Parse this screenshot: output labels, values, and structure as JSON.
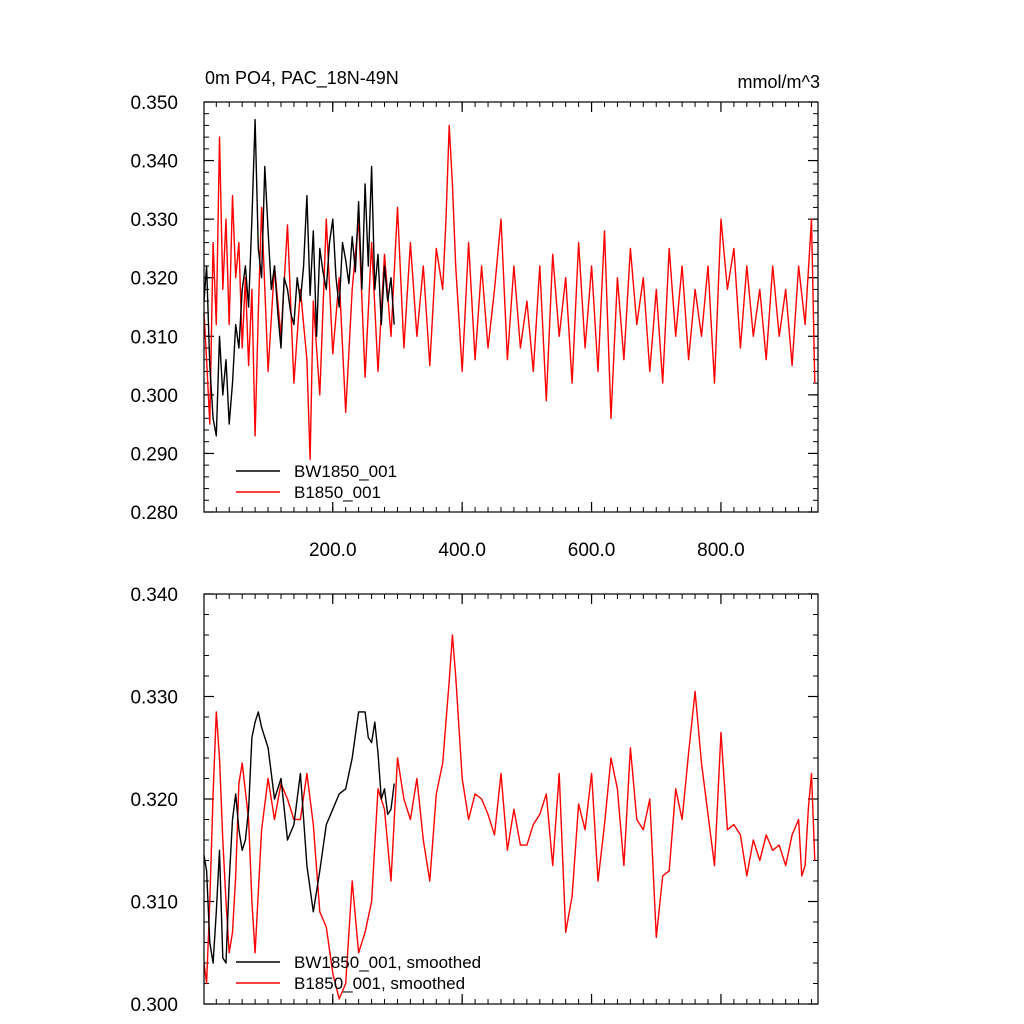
{
  "chart_data": [
    {
      "type": "line",
      "title": "0m PO4, PAC_18N-49N",
      "units": "mmol/m^3",
      "xlim": [
        1,
        950
      ],
      "ylim": [
        0.28,
        0.35
      ],
      "xticks": [
        200,
        400,
        600,
        800
      ],
      "xtick_labels": [
        "200.0",
        "400.0",
        "600.0",
        "800.0"
      ],
      "yticks": [
        0.28,
        0.29,
        0.3,
        0.31,
        0.32,
        0.33,
        0.34,
        0.35
      ],
      "ytick_labels": [
        "0.280",
        "0.290",
        "0.300",
        "0.310",
        "0.320",
        "0.330",
        "0.340",
        "0.350"
      ],
      "legend_position": "bottom-left",
      "series": [
        {
          "name": "BW1850_001",
          "color": "#000000",
          "x": [
            1,
            5,
            10,
            15,
            20,
            25,
            30,
            35,
            40,
            45,
            50,
            55,
            60,
            65,
            70,
            75,
            80,
            85,
            90,
            95,
            100,
            105,
            110,
            115,
            120,
            125,
            130,
            135,
            140,
            145,
            150,
            155,
            160,
            165,
            170,
            175,
            180,
            185,
            190,
            195,
            200,
            205,
            210,
            215,
            220,
            225,
            230,
            235,
            240,
            245,
            250,
            255,
            260,
            265,
            270,
            275,
            280,
            285,
            290,
            295
          ],
          "values": [
            0.316,
            0.322,
            0.305,
            0.296,
            0.293,
            0.31,
            0.3,
            0.306,
            0.295,
            0.302,
            0.312,
            0.308,
            0.318,
            0.322,
            0.315,
            0.33,
            0.347,
            0.325,
            0.32,
            0.339,
            0.328,
            0.318,
            0.322,
            0.314,
            0.308,
            0.32,
            0.318,
            0.314,
            0.312,
            0.32,
            0.316,
            0.322,
            0.334,
            0.317,
            0.328,
            0.31,
            0.325,
            0.321,
            0.318,
            0.326,
            0.33,
            0.32,
            0.315,
            0.326,
            0.323,
            0.319,
            0.327,
            0.321,
            0.333,
            0.318,
            0.336,
            0.322,
            0.339,
            0.318,
            0.324,
            0.312,
            0.322,
            0.316,
            0.32,
            0.312
          ]
        },
        {
          "name": "B1850_001",
          "color": "#ff0000",
          "x": [
            1,
            5,
            10,
            15,
            20,
            25,
            30,
            35,
            40,
            45,
            50,
            55,
            60,
            65,
            70,
            75,
            80,
            85,
            90,
            100,
            110,
            120,
            130,
            140,
            150,
            160,
            165,
            170,
            180,
            190,
            200,
            210,
            220,
            230,
            240,
            250,
            260,
            270,
            280,
            290,
            300,
            310,
            320,
            330,
            340,
            350,
            360,
            370,
            375,
            380,
            385,
            390,
            400,
            410,
            420,
            430,
            440,
            450,
            460,
            470,
            480,
            490,
            500,
            510,
            520,
            530,
            540,
            550,
            560,
            570,
            580,
            590,
            600,
            610,
            620,
            630,
            640,
            650,
            660,
            670,
            680,
            690,
            700,
            710,
            720,
            730,
            740,
            750,
            760,
            770,
            780,
            790,
            800,
            810,
            820,
            830,
            840,
            850,
            860,
            870,
            880,
            890,
            900,
            910,
            920,
            930,
            940,
            945
          ],
          "values": [
            0.314,
            0.306,
            0.295,
            0.326,
            0.312,
            0.344,
            0.318,
            0.33,
            0.312,
            0.334,
            0.32,
            0.326,
            0.308,
            0.32,
            0.305,
            0.318,
            0.293,
            0.314,
            0.332,
            0.304,
            0.322,
            0.31,
            0.329,
            0.302,
            0.318,
            0.306,
            0.289,
            0.316,
            0.3,
            0.33,
            0.307,
            0.32,
            0.297,
            0.318,
            0.33,
            0.303,
            0.326,
            0.304,
            0.324,
            0.31,
            0.332,
            0.308,
            0.326,
            0.31,
            0.322,
            0.305,
            0.325,
            0.318,
            0.33,
            0.346,
            0.336,
            0.322,
            0.304,
            0.326,
            0.306,
            0.322,
            0.308,
            0.318,
            0.33,
            0.306,
            0.322,
            0.308,
            0.316,
            0.304,
            0.322,
            0.299,
            0.324,
            0.31,
            0.32,
            0.302,
            0.326,
            0.308,
            0.322,
            0.304,
            0.328,
            0.296,
            0.32,
            0.306,
            0.325,
            0.312,
            0.32,
            0.304,
            0.318,
            0.302,
            0.325,
            0.31,
            0.322,
            0.306,
            0.318,
            0.31,
            0.322,
            0.302,
            0.33,
            0.318,
            0.325,
            0.308,
            0.322,
            0.31,
            0.318,
            0.306,
            0.322,
            0.31,
            0.318,
            0.305,
            0.322,
            0.312,
            0.33,
            0.302
          ]
        }
      ]
    },
    {
      "type": "line",
      "xlim": [
        1,
        950
      ],
      "ylim": [
        0.3,
        0.34
      ],
      "yticks": [
        0.3,
        0.31,
        0.32,
        0.33,
        0.34
      ],
      "ytick_labels": [
        "0.300",
        "0.310",
        "0.320",
        "0.330",
        "0.340"
      ],
      "legend_position": "bottom-left",
      "series": [
        {
          "name": "BW1850_001, smoothed",
          "color": "#000000",
          "x": [
            1,
            5,
            10,
            15,
            20,
            25,
            30,
            35,
            40,
            45,
            50,
            55,
            60,
            65,
            70,
            75,
            80,
            85,
            90,
            95,
            100,
            110,
            120,
            130,
            140,
            150,
            160,
            170,
            180,
            190,
            200,
            210,
            220,
            230,
            240,
            250,
            255,
            260,
            265,
            270,
            275,
            280,
            285,
            290,
            295
          ],
          "values": [
            0.3145,
            0.313,
            0.306,
            0.304,
            0.309,
            0.315,
            0.3045,
            0.304,
            0.312,
            0.318,
            0.3205,
            0.317,
            0.315,
            0.316,
            0.319,
            0.326,
            0.3275,
            0.3285,
            0.327,
            0.326,
            0.325,
            0.32,
            0.322,
            0.316,
            0.3175,
            0.3225,
            0.3135,
            0.309,
            0.313,
            0.3175,
            0.319,
            0.3205,
            0.321,
            0.324,
            0.3285,
            0.3285,
            0.326,
            0.3255,
            0.3275,
            0.3245,
            0.32,
            0.321,
            0.3185,
            0.319,
            0.3215
          ]
        },
        {
          "name": "B1850_001, smoothed",
          "color": "#ff0000",
          "x": [
            1,
            5,
            10,
            15,
            20,
            25,
            30,
            35,
            40,
            45,
            50,
            55,
            60,
            70,
            75,
            80,
            90,
            100,
            110,
            120,
            130,
            140,
            150,
            160,
            170,
            180,
            190,
            200,
            210,
            220,
            230,
            240,
            250,
            260,
            270,
            280,
            290,
            300,
            310,
            320,
            330,
            340,
            350,
            360,
            370,
            380,
            385,
            390,
            400,
            410,
            420,
            430,
            440,
            450,
            460,
            470,
            480,
            490,
            500,
            510,
            520,
            530,
            540,
            550,
            560,
            570,
            580,
            590,
            600,
            610,
            620,
            630,
            640,
            650,
            660,
            670,
            680,
            690,
            700,
            710,
            720,
            730,
            740,
            750,
            760,
            770,
            780,
            790,
            800,
            810,
            820,
            830,
            840,
            850,
            860,
            870,
            880,
            890,
            900,
            910,
            920,
            925,
            930,
            935,
            940,
            945
          ],
          "values": [
            0.304,
            0.302,
            0.31,
            0.3205,
            0.3285,
            0.324,
            0.316,
            0.31,
            0.305,
            0.307,
            0.3125,
            0.3215,
            0.3235,
            0.318,
            0.31,
            0.305,
            0.317,
            0.322,
            0.318,
            0.3215,
            0.32,
            0.318,
            0.318,
            0.3225,
            0.3175,
            0.309,
            0.3075,
            0.303,
            0.3005,
            0.302,
            0.312,
            0.305,
            0.307,
            0.31,
            0.321,
            0.319,
            0.312,
            0.324,
            0.32,
            0.318,
            0.322,
            0.316,
            0.312,
            0.3205,
            0.3235,
            0.3315,
            0.336,
            0.332,
            0.322,
            0.318,
            0.3205,
            0.32,
            0.3185,
            0.3165,
            0.3225,
            0.315,
            0.319,
            0.3155,
            0.3155,
            0.3175,
            0.3185,
            0.3205,
            0.3135,
            0.3225,
            0.307,
            0.3105,
            0.3195,
            0.317,
            0.3225,
            0.312,
            0.3175,
            0.324,
            0.321,
            0.3135,
            0.325,
            0.318,
            0.317,
            0.32,
            0.3065,
            0.3125,
            0.313,
            0.321,
            0.318,
            0.3245,
            0.3305,
            0.3235,
            0.3185,
            0.3135,
            0.3265,
            0.317,
            0.3175,
            0.3165,
            0.3125,
            0.316,
            0.314,
            0.3165,
            0.315,
            0.3155,
            0.3135,
            0.3165,
            0.318,
            0.3125,
            0.3135,
            0.319,
            0.3225,
            0.314
          ]
        }
      ]
    }
  ]
}
